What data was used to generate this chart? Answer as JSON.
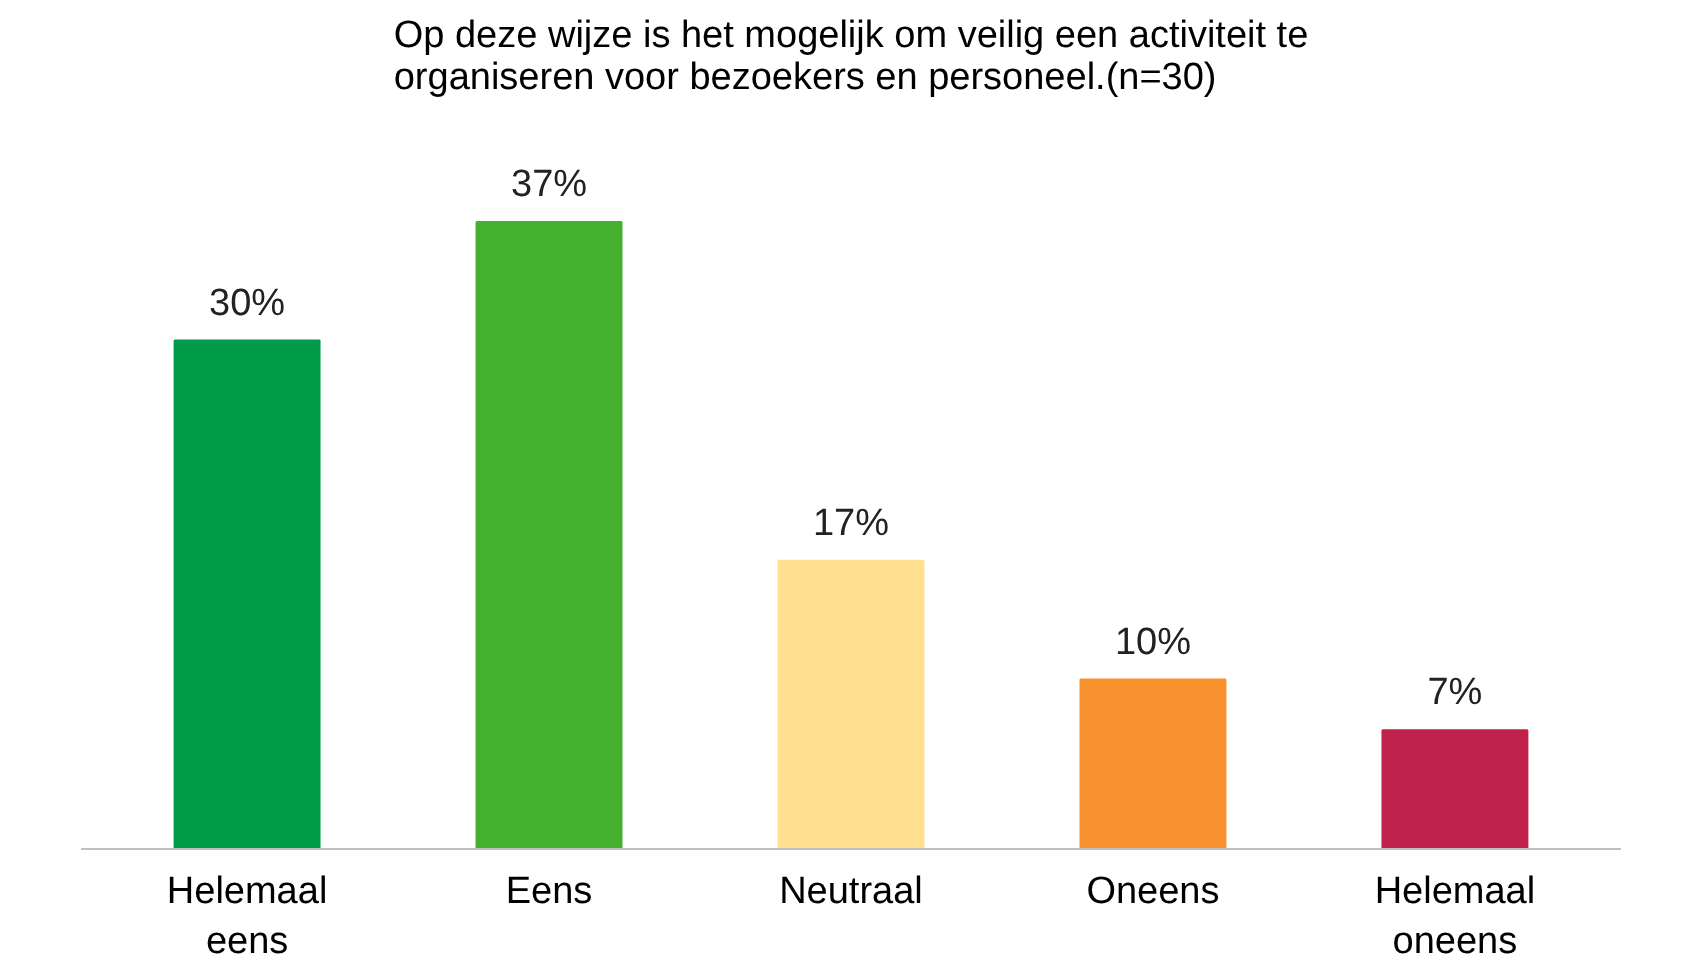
{
  "chart_data": {
    "type": "bar",
    "title": "Op deze wijze is het mogelijk om veilig een activiteit te organiseren voor bezoekers en personeel.(n=30)",
    "categories": [
      "Helemaal eens",
      "Eens",
      "Neutraal",
      "Oneens",
      "Helemaal oneens"
    ],
    "values": [
      30,
      37,
      17,
      10,
      7
    ],
    "colors": [
      "#009b48",
      "#46b12f",
      "#fee08f",
      "#f7922f",
      "#c0224b"
    ],
    "value_labels": [
      "30%",
      "37%",
      "17%",
      "10%",
      "7%"
    ],
    "grid": false
  }
}
